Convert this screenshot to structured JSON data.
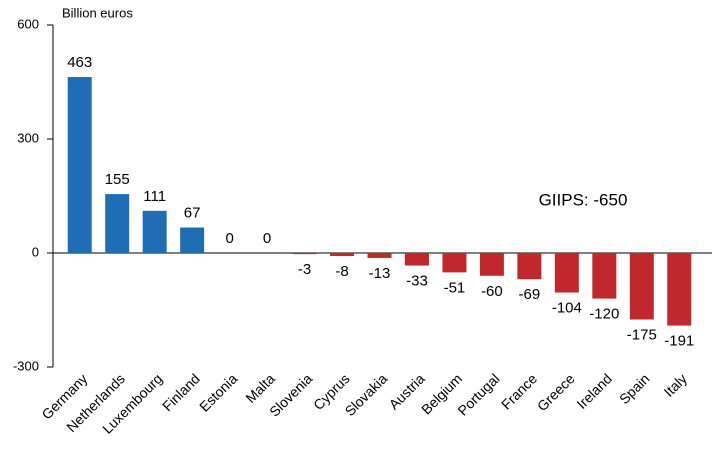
{
  "chart_data": {
    "type": "bar",
    "y_axis_label": "Billion euros",
    "annotation": "GIIPS: -650",
    "annotation_color": "#c0282d",
    "categories": [
      "Germany",
      "Netherlands",
      "Luxembourg",
      "Finland",
      "Estonia",
      "Malta",
      "Slovenia",
      "Cyprus",
      "Slovakia",
      "Austria",
      "Belgium",
      "Portugal",
      "France",
      "Greece",
      "Ireland",
      "Spain",
      "Italy"
    ],
    "values": [
      463,
      155,
      111,
      67,
      0,
      0,
      -3,
      -8,
      -13,
      -33,
      -51,
      -60,
      -69,
      -104,
      -120,
      -175,
      -191
    ],
    "colors": [
      "#1f6db5",
      "#1f6db5",
      "#1f6db5",
      "#1f6db5",
      "#1f6db5",
      "#1f6db5",
      "#c0282d",
      "#c0282d",
      "#c0282d",
      "#c0282d",
      "#c0282d",
      "#c0282d",
      "#c0282d",
      "#c0282d",
      "#c0282d",
      "#c0282d",
      "#c0282d"
    ],
    "label_colors": [
      "#1f6db5",
      "#000000",
      "#000000",
      "#000000",
      "#000000",
      "#000000",
      "#000000",
      "#000000",
      "#000000",
      "#000000",
      "#000000",
      "#c0282d",
      "#000000",
      "#c0282d",
      "#c0282d",
      "#c0282d",
      "#c0282d"
    ],
    "ylim": [
      -300,
      600
    ],
    "yticks": [
      -300,
      0,
      300,
      600
    ]
  }
}
